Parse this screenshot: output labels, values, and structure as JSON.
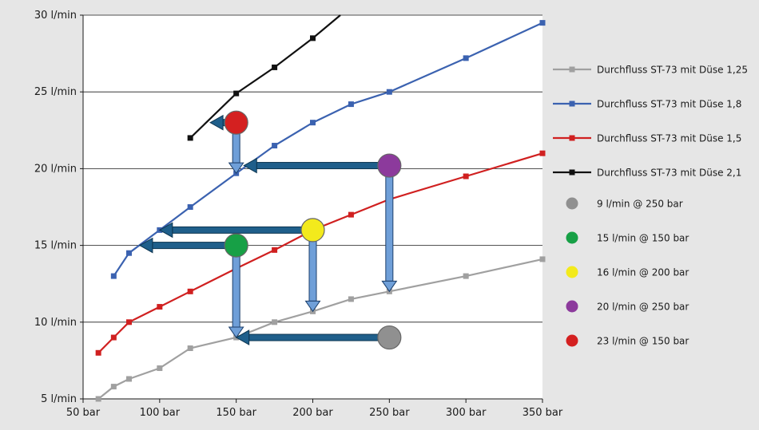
{
  "chart_data": {
    "type": "line",
    "x_tick_labels": [
      "50 bar",
      "100 bar",
      "150 bar",
      "200 bar",
      "250 bar",
      "300 bar",
      "350 bar"
    ],
    "y_tick_labels": [
      "5 l/min",
      "10 l/min",
      "15 l/min",
      "20 l/min",
      "25 l/min",
      "30 l/min"
    ],
    "x_ticks": [
      50,
      100,
      150,
      200,
      250,
      300,
      350
    ],
    "y_ticks": [
      5,
      10,
      15,
      20,
      25,
      30
    ],
    "xlim": [
      50,
      350
    ],
    "ylim": [
      5,
      30
    ],
    "grid": "horizontal",
    "legend_position": "right",
    "series": [
      {
        "name": "Durchfluss ST-73 mit Düse 1,25",
        "color": "#a0a0a0",
        "x": [
          60,
          70,
          80,
          100,
          120,
          150,
          175,
          200,
          225,
          250,
          300,
          350
        ],
        "y": [
          5.0,
          5.8,
          6.3,
          7.0,
          8.3,
          9.0,
          10.0,
          10.7,
          11.5,
          12.0,
          13.0,
          14.1
        ]
      },
      {
        "name": "Durchfluss ST-73 mit Düse 1,8",
        "color": "#3b62b0",
        "x": [
          70,
          80,
          100,
          120,
          150,
          175,
          200,
          225,
          250,
          300,
          350
        ],
        "y": [
          13.0,
          14.5,
          16.0,
          17.5,
          19.7,
          21.5,
          23.0,
          24.2,
          25.0,
          27.2,
          29.5
        ]
      },
      {
        "name": "Durchfluss ST-73 mit Düse 1,5",
        "color": "#d02020",
        "x": [
          60,
          70,
          80,
          100,
          120,
          150,
          175,
          200,
          225,
          250,
          300,
          350
        ],
        "y": [
          8.0,
          9.0,
          10.0,
          11.0,
          12.0,
          13.5,
          14.7,
          16.0,
          17.0,
          18.0,
          19.5,
          21.0
        ]
      },
      {
        "name": "Durchfluss ST-73 mit Düse 2,1",
        "color": "#111111",
        "x": [
          120,
          150,
          175,
          200,
          218
        ],
        "y": [
          22.0,
          24.9,
          26.6,
          28.5,
          30.0
        ],
        "marker_count": 4
      }
    ],
    "points": [
      {
        "label": "9 l/min @ 250 bar",
        "color": "#909090",
        "x": 250,
        "y": 9
      },
      {
        "label": "15 l/min @ 150 bar",
        "color": "#17a046",
        "x": 150,
        "y": 15
      },
      {
        "label": "16 l/min @ 200 bar",
        "color": "#f3ea1c",
        "x": 200,
        "y": 16
      },
      {
        "label": "20 l/min @ 250 bar",
        "color": "#8c3a9c",
        "x": 250,
        "y": 20.2
      },
      {
        "label": "23 l/min @ 150 bar",
        "color": "#d42020",
        "x": 150,
        "y": 23
      }
    ],
    "arrows": [
      {
        "dir": "down",
        "x": 150,
        "from_y": 23,
        "to_y": 19.7
      },
      {
        "dir": "left",
        "y": 20.2,
        "from_x": 250,
        "to_x": 155
      },
      {
        "dir": "left",
        "y": 23,
        "from_x": 150,
        "to_x": 133
      },
      {
        "dir": "down",
        "x": 250,
        "from_y": 20.2,
        "to_y": 12.0
      },
      {
        "dir": "left",
        "y": 16,
        "from_x": 200,
        "to_x": 100
      },
      {
        "dir": "down",
        "x": 200,
        "from_y": 16,
        "to_y": 10.7
      },
      {
        "dir": "left",
        "y": 15,
        "from_x": 150,
        "to_x": 87
      },
      {
        "dir": "down",
        "x": 150,
        "from_y": 15,
        "to_y": 9.0
      },
      {
        "dir": "left",
        "y": 9,
        "from_x": 250,
        "to_x": 150
      }
    ]
  }
}
